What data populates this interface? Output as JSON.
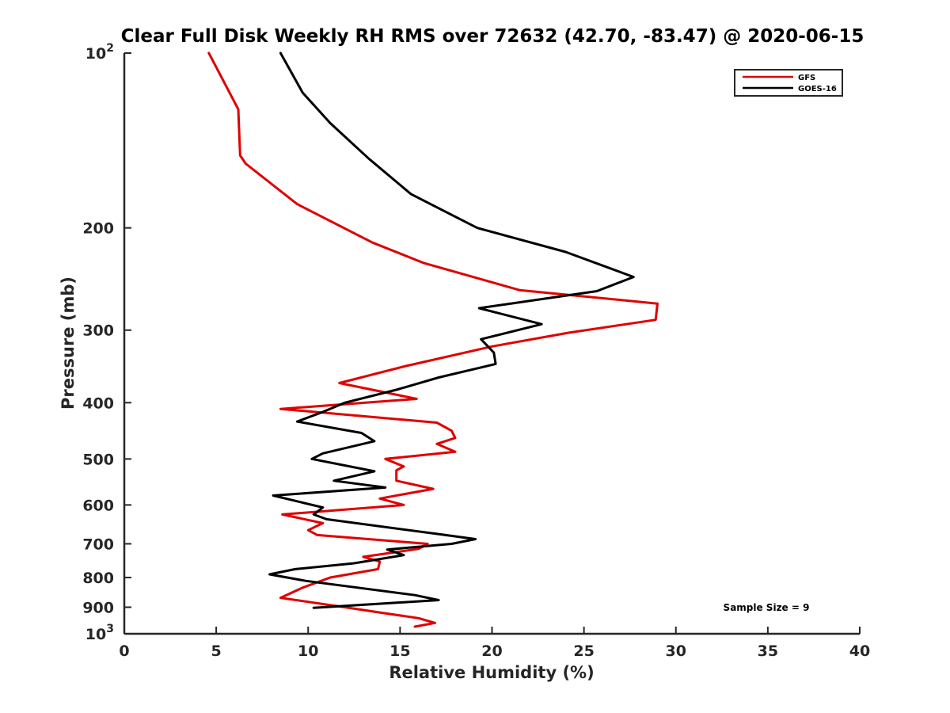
{
  "chart_data": {
    "type": "line",
    "title": "Clear Full Disk Weekly RH RMS over 72632 (42.70, -83.47) @ 2020-06-15",
    "xlabel": "Relative Humidity (%)",
    "ylabel": "Pressure (mb)",
    "xlim": [
      0,
      40
    ],
    "ylim": [
      100,
      1000
    ],
    "y_scale": "log",
    "y_reversed": true,
    "grid": false,
    "legend_position": "top-right",
    "x_ticks": [
      "0",
      "5",
      "10",
      "15",
      "20",
      "25",
      "30",
      "35",
      "40"
    ],
    "y_ticks": [
      {
        "value": 100,
        "base": "10",
        "exp": "2"
      },
      {
        "value": 200,
        "label": "200"
      },
      {
        "value": 300,
        "label": "300"
      },
      {
        "value": 400,
        "label": "400"
      },
      {
        "value": 500,
        "label": "500"
      },
      {
        "value": 600,
        "label": "600"
      },
      {
        "value": 700,
        "label": "700"
      },
      {
        "value": 800,
        "label": "800"
      },
      {
        "value": 900,
        "label": "900"
      },
      {
        "value": 1000,
        "base": "10",
        "exp": "3"
      }
    ],
    "series": [
      {
        "name": "GFS",
        "color": "#e00000",
        "points": [
          [
            4.6,
            100
          ],
          [
            6.2,
            125
          ],
          [
            6.3,
            150
          ],
          [
            6.6,
            155
          ],
          [
            9.4,
            182
          ],
          [
            13.5,
            212
          ],
          [
            16.3,
            230
          ],
          [
            21.5,
            256
          ],
          [
            29.0,
            270
          ],
          [
            28.9,
            288
          ],
          [
            24.2,
            303
          ],
          [
            20.0,
            320
          ],
          [
            15.3,
            346
          ],
          [
            11.7,
            370
          ],
          [
            15.9,
            394
          ],
          [
            8.5,
            410
          ],
          [
            17.0,
            433
          ],
          [
            17.8,
            447
          ],
          [
            18.0,
            460
          ],
          [
            17.0,
            471
          ],
          [
            18.0,
            486
          ],
          [
            14.2,
            500
          ],
          [
            15.2,
            515
          ],
          [
            14.8,
            523
          ],
          [
            14.8,
            545
          ],
          [
            16.8,
            563
          ],
          [
            13.9,
            585
          ],
          [
            15.2,
            600
          ],
          [
            8.6,
            623
          ],
          [
            10.8,
            645
          ],
          [
            10.0,
            663
          ],
          [
            10.5,
            676
          ],
          [
            16.5,
            700
          ],
          [
            16.0,
            714
          ],
          [
            13.0,
            737
          ],
          [
            13.9,
            751
          ],
          [
            13.8,
            774
          ],
          [
            11.2,
            800
          ],
          [
            9.7,
            833
          ],
          [
            8.5,
            867
          ],
          [
            12.0,
            900
          ],
          [
            14.0,
            920
          ],
          [
            16.0,
            940
          ],
          [
            16.9,
            958
          ],
          [
            15.8,
            972
          ]
        ]
      },
      {
        "name": "GOES-16",
        "color": "#000000",
        "points": [
          [
            8.5,
            100
          ],
          [
            9.7,
            117
          ],
          [
            11.2,
            132
          ],
          [
            13.3,
            152
          ],
          [
            15.6,
            175
          ],
          [
            19.2,
            200
          ],
          [
            24.0,
            220
          ],
          [
            27.7,
            243
          ],
          [
            25.7,
            257
          ],
          [
            19.3,
            275
          ],
          [
            22.7,
            293
          ],
          [
            19.4,
            311
          ],
          [
            20.1,
            328
          ],
          [
            20.2,
            343
          ],
          [
            17.1,
            362
          ],
          [
            14.8,
            380
          ],
          [
            12.0,
            400
          ],
          [
            10.8,
            415
          ],
          [
            9.4,
            431
          ],
          [
            12.9,
            451
          ],
          [
            13.6,
            466
          ],
          [
            10.8,
            489
          ],
          [
            10.2,
            500
          ],
          [
            13.6,
            525
          ],
          [
            11.4,
            545
          ],
          [
            14.2,
            560
          ],
          [
            8.1,
            578
          ],
          [
            10.8,
            606
          ],
          [
            10.3,
            623
          ],
          [
            11.0,
            635
          ],
          [
            17.0,
            673
          ],
          [
            19.1,
            687
          ],
          [
            17.8,
            700
          ],
          [
            14.3,
            716
          ],
          [
            15.2,
            732
          ],
          [
            12.5,
            756
          ],
          [
            9.3,
            774
          ],
          [
            7.9,
            790
          ],
          [
            9.9,
            811
          ],
          [
            15.8,
            858
          ],
          [
            17.1,
            875
          ],
          [
            10.3,
            902
          ]
        ]
      }
    ],
    "annotations": [
      "Sample Size = 9"
    ]
  }
}
